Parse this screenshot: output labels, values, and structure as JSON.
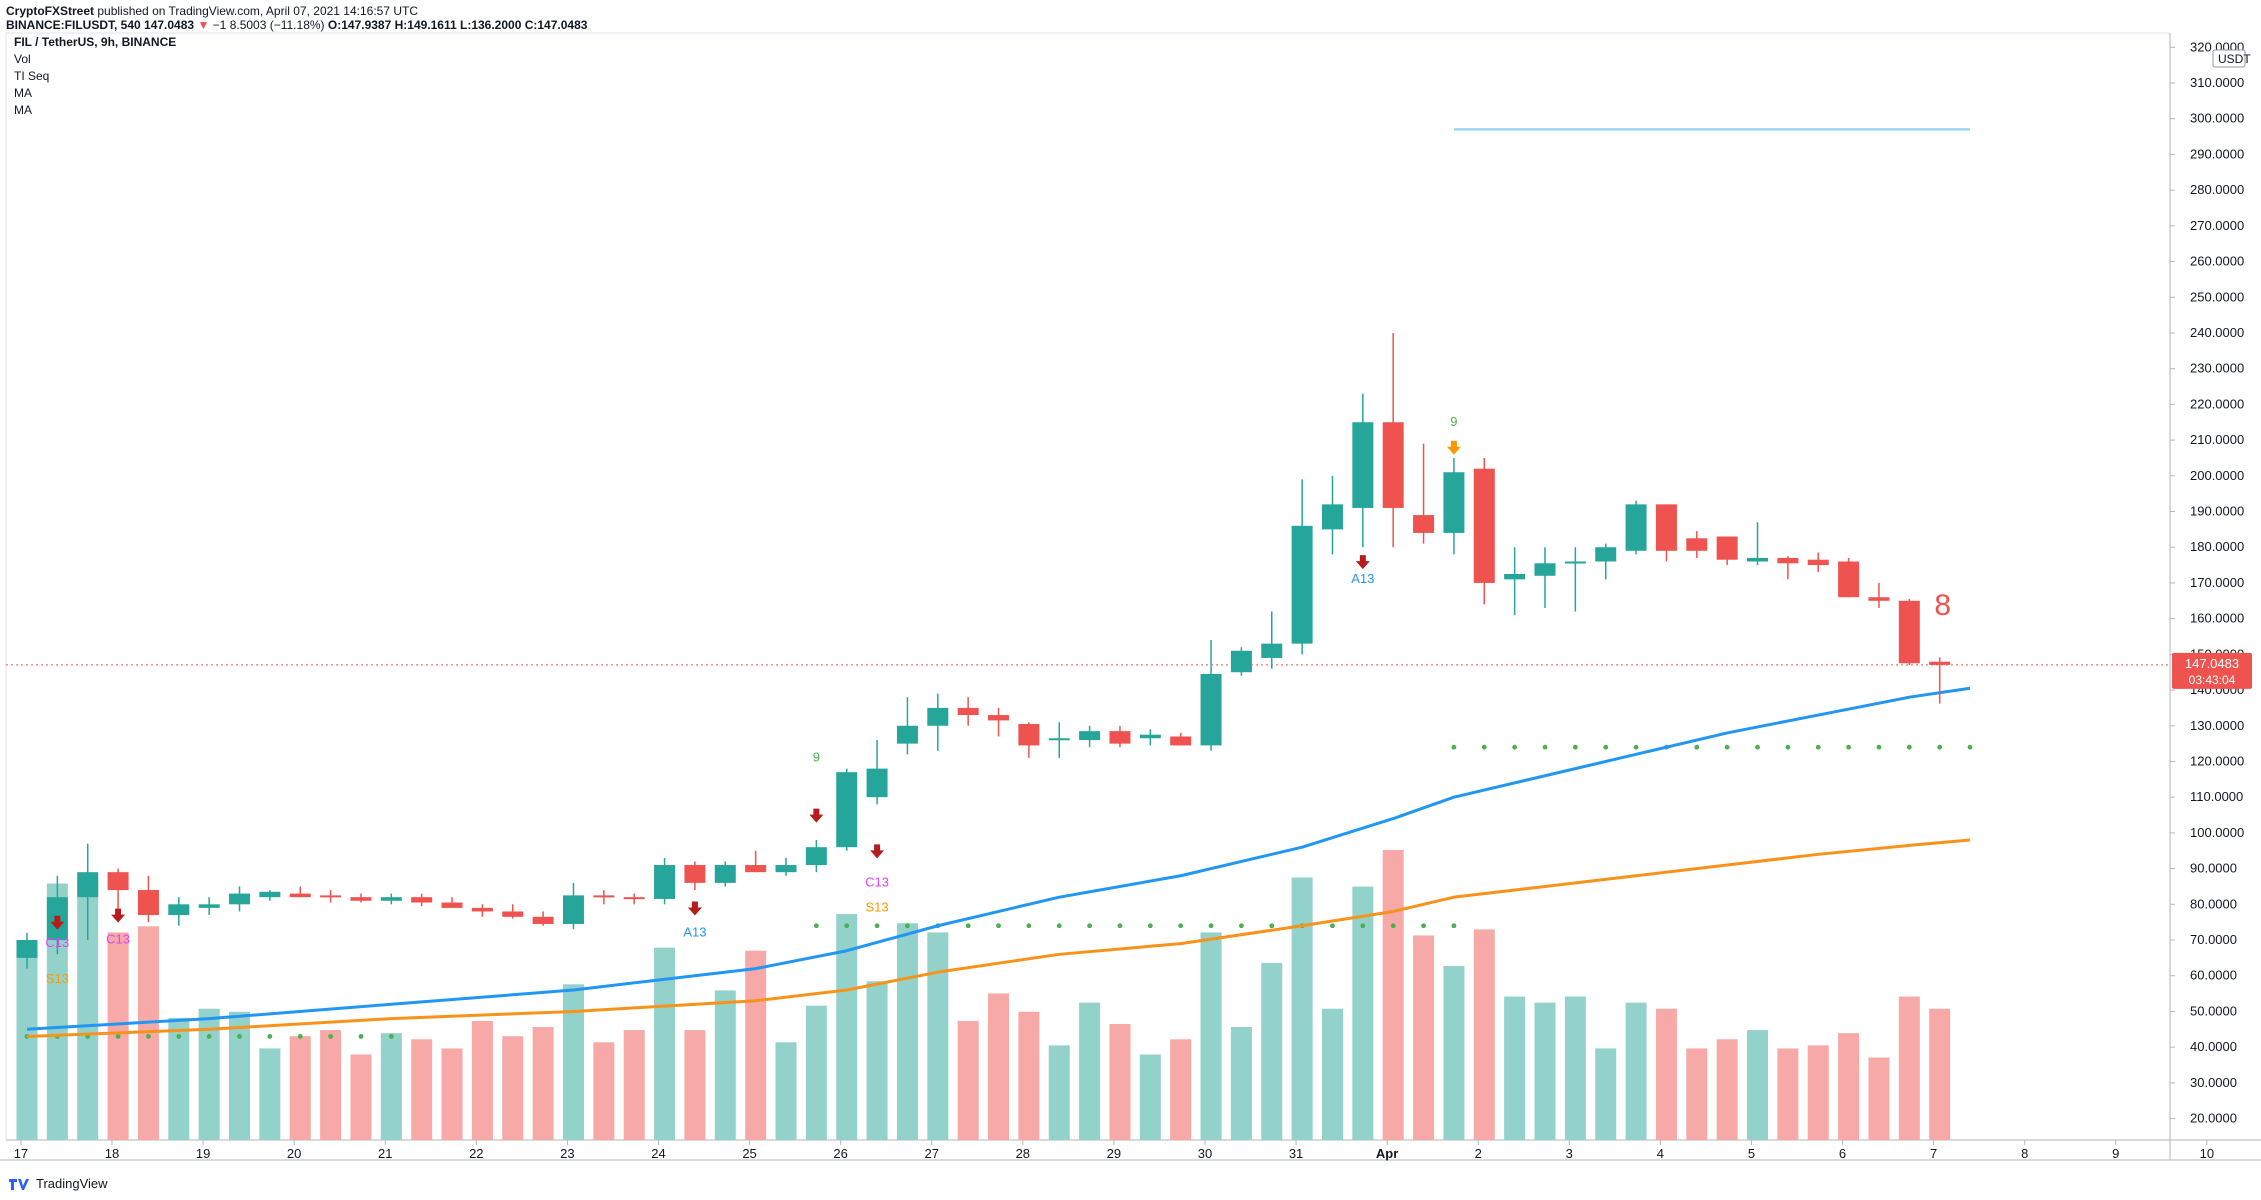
{
  "header": {
    "publisher": "CryptoFXStreet",
    "published_text": "published on TradingView.com, April 07, 2021 14:16:57 UTC",
    "symbol_line": "BINANCE:FILUSDT, 540",
    "last": "147.0483",
    "change": "−1 8.5003 (−11.18%)",
    "ohlc": "O:147.9387 H:149.1611 L:136.2000 C:147.0483"
  },
  "legend": {
    "title": "FIL / TetherUS, 9h, BINANCE",
    "indicators": [
      "Vol",
      "TI Seq",
      "MA",
      "MA"
    ]
  },
  "footer": {
    "brand": "TradingView"
  },
  "colors": {
    "up": "#26a69a",
    "down": "#ef5350",
    "vol_up": "#93d1cb",
    "vol_down": "#f7a9a7",
    "ma_fast": "#2196f3",
    "ma_slow": "#f7931a",
    "dots": "#4caf50",
    "resistance": "#9fd6ef",
    "arrow_red": "#b71c1c",
    "arrow_orange": "#ff9800"
  },
  "chart_data": {
    "type": "candlestick",
    "title": "FIL / TetherUS, 9h, BINANCE",
    "y_unit": "USDT",
    "ylim": [
      14.0,
      324.0
    ],
    "y_ticks": [
      "20.0000",
      "30.0000",
      "40.0000",
      "50.0000",
      "60.0000",
      "70.0000",
      "80.0000",
      "90.0000",
      "100.0000",
      "110.0000",
      "120.0000",
      "130.0000",
      "140.0000",
      "150.0000",
      "160.0000",
      "170.0000",
      "180.0000",
      "190.0000",
      "200.0000",
      "210.0000",
      "220.0000",
      "230.0000",
      "240.0000",
      "250.0000",
      "260.0000",
      "270.0000",
      "280.0000",
      "290.0000",
      "300.0000",
      "310.0000",
      "320.0000"
    ],
    "x_ticks": [
      {
        "i": -0.2,
        "label": "17"
      },
      {
        "i": 2.8,
        "label": "18"
      },
      {
        "i": 5.8,
        "label": "19"
      },
      {
        "i": 8.8,
        "label": "20"
      },
      {
        "i": 11.8,
        "label": "21"
      },
      {
        "i": 14.8,
        "label": "22"
      },
      {
        "i": 17.8,
        "label": "23"
      },
      {
        "i": 20.8,
        "label": "24"
      },
      {
        "i": 23.8,
        "label": "25"
      },
      {
        "i": 26.8,
        "label": "26"
      },
      {
        "i": 29.8,
        "label": "27"
      },
      {
        "i": 32.8,
        "label": "28"
      },
      {
        "i": 35.8,
        "label": "29"
      },
      {
        "i": 38.8,
        "label": "30"
      },
      {
        "i": 41.8,
        "label": "31"
      },
      {
        "i": 44.8,
        "label": "Apr"
      },
      {
        "i": 47.8,
        "label": "2"
      },
      {
        "i": 50.8,
        "label": "3"
      },
      {
        "i": 53.8,
        "label": "4"
      },
      {
        "i": 56.8,
        "label": "5"
      },
      {
        "i": 59.8,
        "label": "6"
      },
      {
        "i": 62.8,
        "label": "7"
      },
      {
        "i": 65.8,
        "label": "8"
      },
      {
        "i": 68.8,
        "label": "9"
      },
      {
        "i": 71.8,
        "label": "10"
      }
    ],
    "candles": [
      {
        "o": 65,
        "h": 72,
        "l": 62,
        "c": 70,
        "v": 63
      },
      {
        "o": 70,
        "h": 88,
        "l": 66,
        "c": 82,
        "v": 84
      },
      {
        "o": 82,
        "h": 97,
        "l": 70,
        "c": 89,
        "v": 85
      },
      {
        "o": 89,
        "h": 90,
        "l": 77,
        "c": 84,
        "v": 68
      },
      {
        "o": 84,
        "h": 88,
        "l": 75,
        "c": 77,
        "v": 70
      },
      {
        "o": 77,
        "h": 82,
        "l": 74,
        "c": 80,
        "v": 40
      },
      {
        "o": 79,
        "h": 82,
        "l": 77,
        "c": 80,
        "v": 43
      },
      {
        "o": 80,
        "h": 85,
        "l": 78,
        "c": 83,
        "v": 42
      },
      {
        "o": 82,
        "h": 84,
        "l": 81,
        "c": 83.5,
        "v": 30
      },
      {
        "o": 83,
        "h": 85,
        "l": 82,
        "c": 82,
        "v": 34
      },
      {
        "o": 82.5,
        "h": 84,
        "l": 80.5,
        "c": 82,
        "v": 36
      },
      {
        "o": 82,
        "h": 83,
        "l": 80.5,
        "c": 81,
        "v": 28
      },
      {
        "o": 81,
        "h": 83,
        "l": 80,
        "c": 82,
        "v": 35
      },
      {
        "o": 82,
        "h": 83,
        "l": 79.5,
        "c": 80.5,
        "v": 33
      },
      {
        "o": 80.5,
        "h": 82,
        "l": 79,
        "c": 79,
        "v": 30
      },
      {
        "o": 79,
        "h": 80,
        "l": 76.5,
        "c": 78,
        "v": 39
      },
      {
        "o": 78,
        "h": 80,
        "l": 76,
        "c": 76.5,
        "v": 34
      },
      {
        "o": 76.5,
        "h": 78,
        "l": 74,
        "c": 74.5,
        "v": 37
      },
      {
        "o": 74.5,
        "h": 86,
        "l": 73,
        "c": 82.5,
        "v": 51
      },
      {
        "o": 82.5,
        "h": 84,
        "l": 80,
        "c": 82,
        "v": 32
      },
      {
        "o": 82,
        "h": 83,
        "l": 80,
        "c": 81.5,
        "v": 36
      },
      {
        "o": 81.5,
        "h": 93,
        "l": 80,
        "c": 91,
        "v": 63
      },
      {
        "o": 91,
        "h": 92,
        "l": 84,
        "c": 86,
        "v": 36
      },
      {
        "o": 86,
        "h": 92,
        "l": 85,
        "c": 91,
        "v": 49
      },
      {
        "o": 91,
        "h": 95,
        "l": 89,
        "c": 89,
        "v": 62
      },
      {
        "o": 89,
        "h": 93,
        "l": 88,
        "c": 91,
        "v": 32
      },
      {
        "o": 91,
        "h": 98,
        "l": 89,
        "c": 96,
        "v": 44
      },
      {
        "o": 96,
        "h": 118,
        "l": 95,
        "c": 117,
        "v": 74
      },
      {
        "o": 110,
        "h": 126,
        "l": 108,
        "c": 118,
        "v": 52
      },
      {
        "o": 125,
        "h": 138,
        "l": 122,
        "c": 130,
        "v": 71
      },
      {
        "o": 130,
        "h": 139,
        "l": 123,
        "c": 135,
        "v": 68
      },
      {
        "o": 135,
        "h": 138,
        "l": 130,
        "c": 133,
        "v": 39
      },
      {
        "o": 133,
        "h": 135,
        "l": 127,
        "c": 131.5,
        "v": 48
      },
      {
        "o": 130.5,
        "h": 131,
        "l": 121,
        "c": 124.5,
        "v": 42
      },
      {
        "o": 126,
        "h": 131,
        "l": 121,
        "c": 126.5,
        "v": 31
      },
      {
        "o": 126,
        "h": 130,
        "l": 124,
        "c": 128.5,
        "v": 45
      },
      {
        "o": 128.5,
        "h": 130,
        "l": 124,
        "c": 125,
        "v": 38
      },
      {
        "o": 126.5,
        "h": 129,
        "l": 124.5,
        "c": 127.5,
        "v": 28
      },
      {
        "o": 127,
        "h": 128,
        "l": 124.5,
        "c": 124.5,
        "v": 33
      },
      {
        "o": 124.5,
        "h": 154,
        "l": 123,
        "c": 144.5,
        "v": 68
      },
      {
        "o": 145,
        "h": 152,
        "l": 144,
        "c": 151,
        "v": 37
      },
      {
        "o": 149,
        "h": 162,
        "l": 146,
        "c": 153,
        "v": 58
      },
      {
        "o": 153,
        "h": 199,
        "l": 150,
        "c": 186,
        "v": 86
      },
      {
        "o": 185,
        "h": 200,
        "l": 178,
        "c": 192,
        "v": 43
      },
      {
        "o": 191,
        "h": 223,
        "l": 180,
        "c": 215,
        "v": 83
      },
      {
        "o": 215,
        "h": 240,
        "l": 180,
        "c": 191,
        "v": 95
      },
      {
        "o": 189,
        "h": 209,
        "l": 181,
        "c": 184,
        "v": 67
      },
      {
        "o": 184,
        "h": 205,
        "l": 178,
        "c": 201,
        "v": 57
      },
      {
        "o": 202,
        "h": 205,
        "l": 164,
        "c": 170,
        "v": 69
      },
      {
        "o": 171,
        "h": 180,
        "l": 161,
        "c": 172.5,
        "v": 47
      },
      {
        "o": 172,
        "h": 180,
        "l": 163,
        "c": 175.5,
        "v": 45
      },
      {
        "o": 175.5,
        "h": 180,
        "l": 162,
        "c": 176,
        "v": 47
      },
      {
        "o": 176,
        "h": 181,
        "l": 171,
        "c": 180,
        "v": 30
      },
      {
        "o": 179,
        "h": 193,
        "l": 178,
        "c": 192,
        "v": 45
      },
      {
        "o": 192,
        "h": 192,
        "l": 176,
        "c": 179,
        "v": 43
      },
      {
        "o": 182.5,
        "h": 184.5,
        "l": 177,
        "c": 179,
        "v": 30
      },
      {
        "o": 183,
        "h": 183,
        "l": 175,
        "c": 176.5,
        "v": 33
      },
      {
        "o": 176,
        "h": 187,
        "l": 175,
        "c": 177,
        "v": 36
      },
      {
        "o": 177,
        "h": 177.5,
        "l": 171,
        "c": 175.5,
        "v": 30
      },
      {
        "o": 176.5,
        "h": 178.5,
        "l": 173,
        "c": 175,
        "v": 31
      },
      {
        "o": 176,
        "h": 177,
        "l": 166,
        "c": 166,
        "v": 35
      },
      {
        "o": 166,
        "h": 170,
        "l": 163,
        "c": 165,
        "v": 27
      },
      {
        "o": 165,
        "h": 165.5,
        "l": 147,
        "c": 147.5,
        "v": 47
      },
      {
        "o": 147.9387,
        "h": 149.1611,
        "l": 136.2,
        "c": 147.0483,
        "v": 43
      }
    ],
    "ma_fast": [
      [
        0,
        45
      ],
      [
        6,
        48
      ],
      [
        12,
        52
      ],
      [
        18,
        56
      ],
      [
        24,
        62
      ],
      [
        27,
        67
      ],
      [
        30,
        74
      ],
      [
        34,
        82
      ],
      [
        38,
        88
      ],
      [
        42,
        96
      ],
      [
        45,
        104
      ],
      [
        47,
        110
      ],
      [
        50,
        116
      ],
      [
        53,
        122
      ],
      [
        56,
        128
      ],
      [
        59,
        133
      ],
      [
        62,
        138
      ],
      [
        64,
        140.5
      ]
    ],
    "ma_slow": [
      [
        0,
        43
      ],
      [
        6,
        45
      ],
      [
        12,
        48
      ],
      [
        18,
        50
      ],
      [
        24,
        53
      ],
      [
        27,
        56
      ],
      [
        30,
        61
      ],
      [
        34,
        66
      ],
      [
        38,
        69
      ],
      [
        42,
        74
      ],
      [
        45,
        78
      ],
      [
        47,
        82
      ],
      [
        50,
        85
      ],
      [
        53,
        88
      ],
      [
        56,
        91
      ],
      [
        59,
        94
      ],
      [
        62,
        96.5
      ],
      [
        64,
        98
      ]
    ],
    "support_dots": [
      {
        "from": 0,
        "to": 12,
        "y": 43
      },
      {
        "from": 26,
        "to": 47,
        "y": 74
      },
      {
        "from": 47,
        "to": 64,
        "y": 124
      }
    ],
    "resistance_line": {
      "from": 47,
      "to": 64,
      "y": 297
    },
    "current_price_label": "147.0483",
    "countdown_label": "03:43:04",
    "setup_count_label": "8",
    "markers": [
      {
        "i": 1,
        "kind": "arrow_red",
        "y": 74
      },
      {
        "i": 1,
        "kind": "text",
        "y": 68,
        "text": "C13",
        "color": "#e040fb"
      },
      {
        "i": 1,
        "kind": "text",
        "y": 58,
        "text": "S13",
        "color": "#ff9800"
      },
      {
        "i": 3,
        "kind": "arrow_red",
        "y": 76
      },
      {
        "i": 3,
        "kind": "text",
        "y": 69,
        "text": "C13",
        "color": "#e040fb"
      },
      {
        "i": 22,
        "kind": "arrow_red",
        "y": 78
      },
      {
        "i": 22,
        "kind": "text",
        "y": 71,
        "text": "A13",
        "color": "#2196f3"
      },
      {
        "i": 26,
        "kind": "text",
        "y": 120,
        "text": "9",
        "color": "#4caf50"
      },
      {
        "i": 26,
        "kind": "arrow_red",
        "y": 104
      },
      {
        "i": 28,
        "kind": "arrow_red",
        "y": 94
      },
      {
        "i": 28,
        "kind": "text",
        "y": 85,
        "text": "C13",
        "color": "#e040fb"
      },
      {
        "i": 28,
        "kind": "text",
        "y": 78,
        "text": "S13",
        "color": "#ff9800"
      },
      {
        "i": 44,
        "kind": "arrow_red",
        "y": 175
      },
      {
        "i": 44,
        "kind": "text",
        "y": 170,
        "text": "A13",
        "color": "#2196f3"
      },
      {
        "i": 47,
        "kind": "text",
        "y": 214,
        "text": "9",
        "color": "#4caf50"
      },
      {
        "i": 47,
        "kind": "arrow_orange",
        "y": 207
      }
    ]
  }
}
